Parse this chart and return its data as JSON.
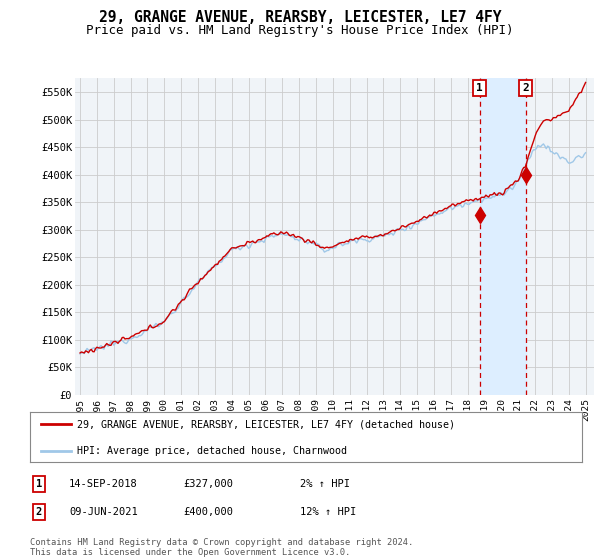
{
  "title": "29, GRANGE AVENUE, REARSBY, LEICESTER, LE7 4FY",
  "subtitle": "Price paid vs. HM Land Registry's House Price Index (HPI)",
  "ylim": [
    0,
    575000
  ],
  "yticks": [
    0,
    50000,
    100000,
    150000,
    200000,
    250000,
    300000,
    350000,
    400000,
    450000,
    500000,
    550000
  ],
  "ytick_labels": [
    "£0",
    "£50K",
    "£100K",
    "£150K",
    "£200K",
    "£250K",
    "£300K",
    "£350K",
    "£400K",
    "£450K",
    "£500K",
    "£550K"
  ],
  "xlim_start": 1994.7,
  "xlim_end": 2025.5,
  "sale1_x": 2018.71,
  "sale1_y": 327000,
  "sale1_label": "1",
  "sale1_date": "14-SEP-2018",
  "sale1_price": "£327,000",
  "sale1_hpi": "2% ↑ HPI",
  "sale2_x": 2021.44,
  "sale2_y": 400000,
  "sale2_label": "2",
  "sale2_date": "09-JUN-2021",
  "sale2_price": "£400,000",
  "sale2_hpi": "12% ↑ HPI",
  "line_color_property": "#cc0000",
  "line_color_hpi": "#a0c8e8",
  "shade_color": "#ddeeff",
  "grid_color": "#cccccc",
  "bg_color": "#f0f4f8",
  "legend_label_property": "29, GRANGE AVENUE, REARSBY, LEICESTER, LE7 4FY (detached house)",
  "legend_label_hpi": "HPI: Average price, detached house, Charnwood",
  "footer": "Contains HM Land Registry data © Crown copyright and database right 2024.\nThis data is licensed under the Open Government Licence v3.0.",
  "title_fontsize": 10.5,
  "subtitle_fontsize": 9
}
